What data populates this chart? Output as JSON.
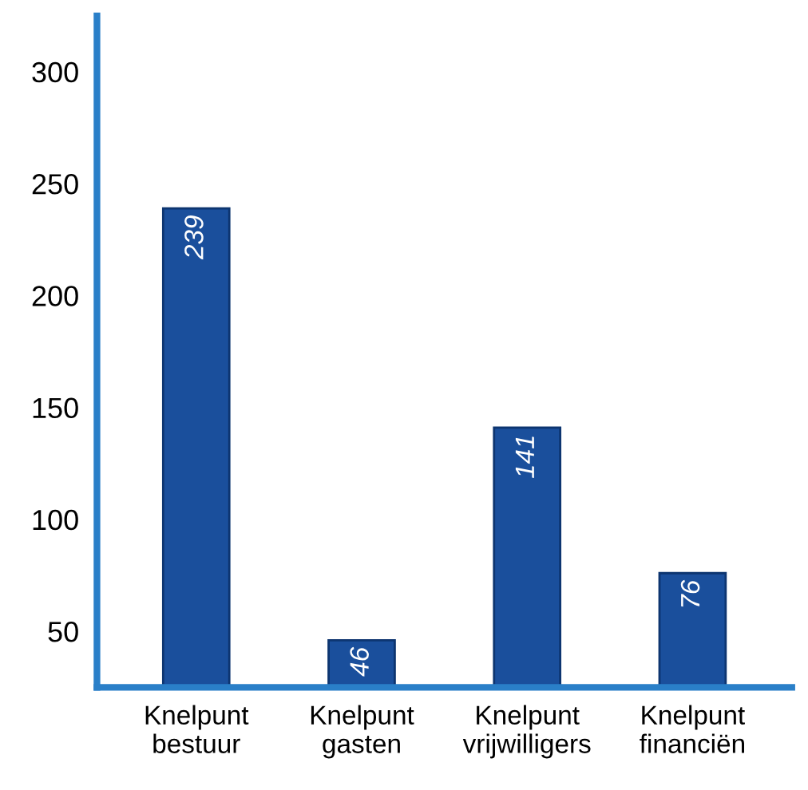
{
  "chart_data": {
    "type": "bar",
    "categories": [
      "Knelpunt\nbestuur",
      "Knelpunt\ngasten",
      "Knelpunt\nvrijwilligers",
      "Knelpunt\nfinanciën"
    ],
    "values": [
      239,
      46,
      141,
      76
    ],
    "color": "#1a4f9c",
    "ylim": [
      25,
      325
    ],
    "yticks": [
      50,
      100,
      150,
      200,
      250,
      300
    ],
    "data_labels": true,
    "grid": false,
    "legend": false
  }
}
